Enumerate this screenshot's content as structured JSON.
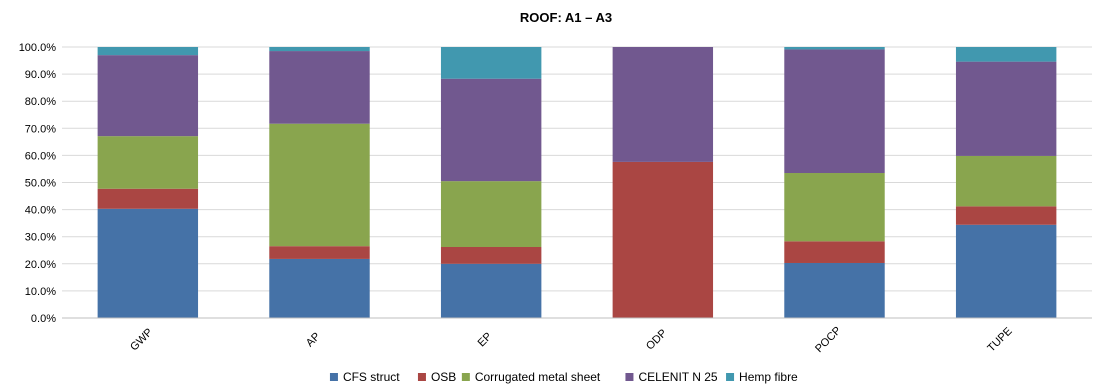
{
  "chart_data": {
    "type": "bar",
    "stacked": true,
    "percent": true,
    "title": "ROOF: A1 – A3",
    "xlabel": "",
    "ylabel": "",
    "ylim": [
      0,
      100
    ],
    "yticks": [
      "0.0%",
      "10.0%",
      "20.0%",
      "30.0%",
      "40.0%",
      "50.0%",
      "60.0%",
      "70.0%",
      "80.0%",
      "90.0%",
      "100.0%"
    ],
    "grid": true,
    "legend_position": "bottom",
    "categories": [
      "GWP",
      "AP",
      "EP",
      "ODP",
      "POCP",
      "TUPE"
    ],
    "series": [
      {
        "name": "CFS struct",
        "color": "#4572a7",
        "values": [
          40.3,
          21.8,
          20.0,
          0.0,
          20.3,
          34.4
        ]
      },
      {
        "name": "OSB",
        "color": "#aa4643",
        "values": [
          7.4,
          4.7,
          6.2,
          57.6,
          8.0,
          6.8
        ]
      },
      {
        "name": "Corrugated metal sheet",
        "color": "#89a54e",
        "values": [
          19.4,
          45.2,
          24.3,
          0.0,
          25.2,
          18.6
        ]
      },
      {
        "name": "CELENIT N 25",
        "color": "#71588f",
        "values": [
          29.9,
          26.8,
          37.8,
          42.4,
          45.6,
          34.8
        ]
      },
      {
        "name": "Hemp fibre",
        "color": "#4198af",
        "values": [
          3.0,
          1.5,
          11.7,
          0.0,
          0.9,
          5.4
        ]
      }
    ]
  }
}
